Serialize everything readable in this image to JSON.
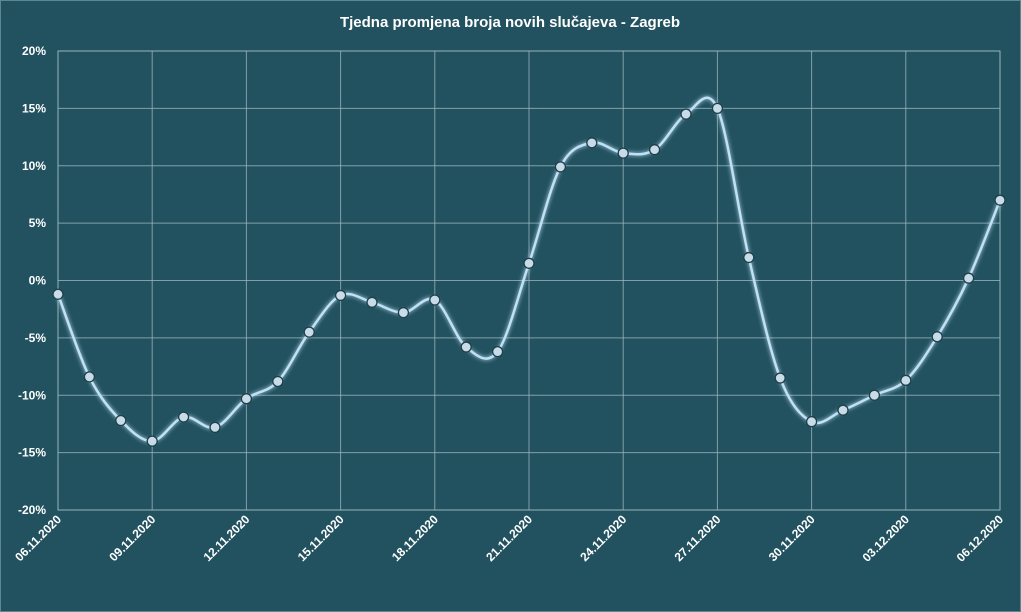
{
  "chart_data": {
    "type": "line",
    "title": "Tjedna promjena broja novih slučajeva - Zagreb",
    "xlabel": "",
    "ylabel": "",
    "ylim": [
      -0.2,
      0.2
    ],
    "yticks": [
      -0.2,
      -0.15,
      -0.1,
      -0.05,
      0,
      0.05,
      0.1,
      0.15,
      0.2
    ],
    "ytick_labels": [
      "-20%",
      "-15%",
      "-10%",
      "-5%",
      "0%",
      "5%",
      "10%",
      "15%",
      "20%"
    ],
    "xtick_labels": [
      "06.11.2020",
      "09.11.2020",
      "12.11.2020",
      "15.11.2020",
      "18.11.2020",
      "21.11.2020",
      "24.11.2020",
      "27.11.2020",
      "30.11.2020",
      "03.12.2020",
      "06.12.2020"
    ],
    "grid": true,
    "colors": {
      "background": "#22525f",
      "line": "#bfe0f5",
      "marker_fill": "#c7dbe8",
      "grid": "#9fbac2"
    },
    "x": [
      "06.11.2020",
      "07.11.2020",
      "08.11.2020",
      "09.11.2020",
      "10.11.2020",
      "11.11.2020",
      "12.11.2020",
      "13.11.2020",
      "14.11.2020",
      "15.11.2020",
      "16.11.2020",
      "17.11.2020",
      "18.11.2020",
      "19.11.2020",
      "20.11.2020",
      "21.11.2020",
      "22.11.2020",
      "23.11.2020",
      "24.11.2020",
      "25.11.2020",
      "26.11.2020",
      "27.11.2020",
      "28.11.2020",
      "29.11.2020",
      "30.11.2020",
      "01.12.2020",
      "02.12.2020",
      "03.12.2020",
      "04.12.2020",
      "05.12.2020",
      "06.12.2020"
    ],
    "series": [
      {
        "values": [
          -0.012,
          -0.084,
          -0.122,
          -0.14,
          -0.119,
          -0.128,
          -0.103,
          -0.088,
          -0.045,
          -0.013,
          -0.019,
          -0.028,
          -0.017,
          -0.058,
          -0.062,
          0.015,
          0.099,
          0.12,
          0.111,
          0.114,
          0.145,
          0.15,
          0.02,
          -0.085,
          -0.123,
          -0.113,
          -0.1,
          -0.087,
          -0.049,
          0.002,
          0.07
        ]
      }
    ]
  }
}
